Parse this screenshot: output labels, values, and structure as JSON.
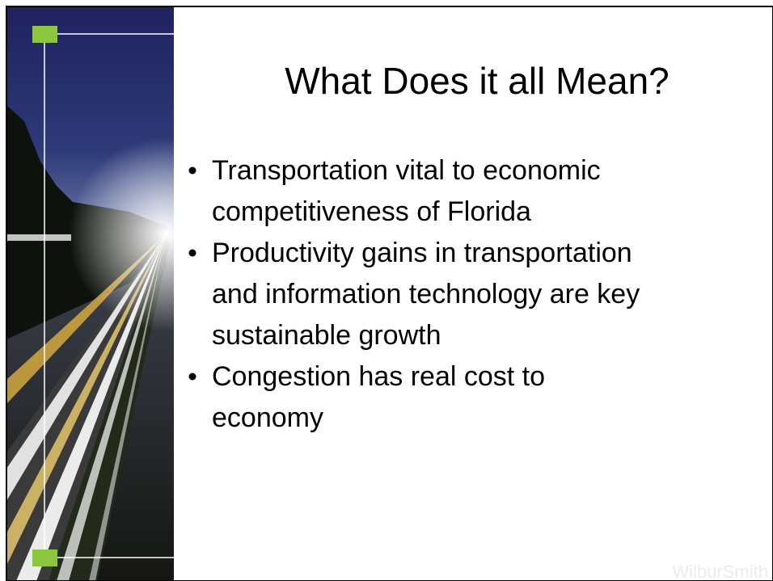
{
  "slide": {
    "title": "What Does it all Mean?",
    "bullets": [
      [
        "Transportation vital to economic",
        "competitiveness of Florida"
      ],
      [
        "Productivity gains in transportation",
        "and information technology are key",
        "sustainable growth"
      ],
      [
        "Congestion has real cost to",
        "economy"
      ]
    ],
    "logo": "WilburSmith"
  }
}
